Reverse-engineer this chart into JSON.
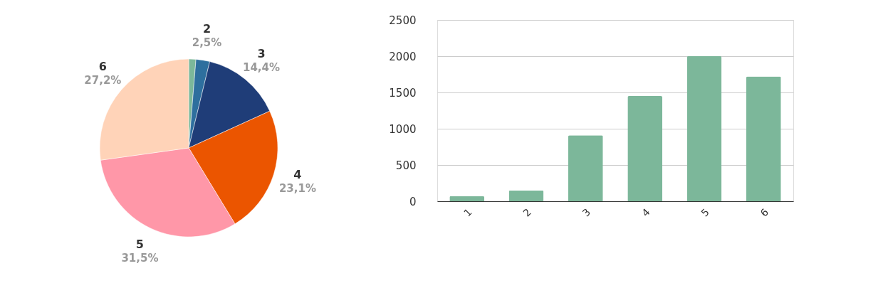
{
  "chart_data": [
    {
      "type": "pie",
      "categories": [
        null,
        "2",
        "3",
        "4",
        "5",
        "6"
      ],
      "values": [
        1.3,
        2.5,
        14.4,
        23.1,
        31.5,
        27.2
      ],
      "colors": [
        "#7cb89a",
        "#2e6f9e",
        "#1f3d78",
        "#eb5500",
        "#ff97a8",
        "#ffd3b8"
      ],
      "value_labels": [
        null,
        "2,5%",
        "14,4%",
        "23,1%",
        "31,5%",
        "27,2%"
      ]
    },
    {
      "type": "bar",
      "categories": [
        "1",
        "2",
        "3",
        "4",
        "5",
        "6"
      ],
      "values": [
        70,
        150,
        910,
        1450,
        2000,
        1720
      ],
      "color": "#7cb79a",
      "ylim": [
        0,
        2500
      ],
      "yticks": [
        0,
        500,
        1000,
        1500,
        2000,
        2500
      ],
      "grid": "y"
    }
  ]
}
